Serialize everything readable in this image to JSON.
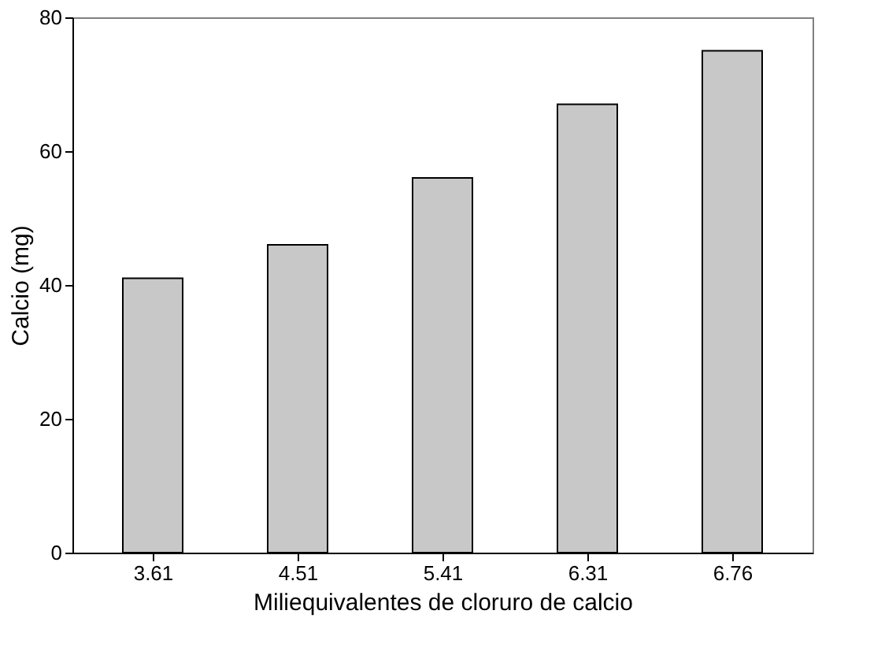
{
  "chart_data": {
    "type": "bar",
    "categories": [
      "3.61",
      "4.51",
      "5.41",
      "6.31",
      "6.76"
    ],
    "values": [
      41,
      46,
      56,
      67,
      75
    ],
    "color": "#c8c8c8",
    "xlabel": "Miliequivalentes de cloruro de calcio",
    "ylabel": "Calcio (mg)",
    "ylim": [
      0,
      80
    ],
    "yticks": [
      0,
      20,
      40,
      60,
      80
    ],
    "grid": false
  }
}
